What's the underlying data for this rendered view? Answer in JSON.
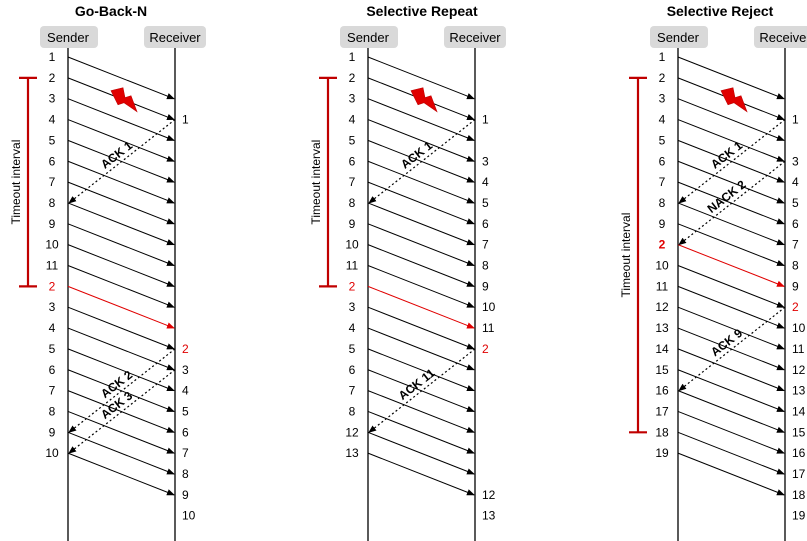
{
  "panels": [
    {
      "title": "Go-Back-N",
      "sender_label": "Sender",
      "receiver_label": "Receiver",
      "timeout_label": "Timeout interval",
      "sender_seq": [
        "1",
        "2",
        "3",
        "4",
        "5",
        "6",
        "7",
        "8",
        "9",
        "10",
        "11",
        "2",
        "3",
        "4",
        "5",
        "6",
        "7",
        "8",
        "9",
        "10"
      ],
      "sender_red": [
        11
      ],
      "receiver_seq": [
        {
          "row": 3,
          "label": "1"
        },
        {
          "row": 14,
          "label": "2",
          "red": true
        },
        {
          "row": 15,
          "label": "3"
        },
        {
          "row": 16,
          "label": "4"
        },
        {
          "row": 17,
          "label": "5"
        },
        {
          "row": 18,
          "label": "6"
        },
        {
          "row": 19,
          "label": "7"
        },
        {
          "row": 20,
          "label": "8"
        },
        {
          "row": 21,
          "label": "9"
        },
        {
          "row": 22,
          "label": "10"
        }
      ],
      "acks": [
        {
          "label": "ACK 1",
          "from_row": 3,
          "to_row": 7
        },
        {
          "label": "ACK 2",
          "from_row": 14,
          "to_row": 18
        },
        {
          "label": "ACK 3",
          "from_row": 15,
          "to_row": 19
        }
      ]
    },
    {
      "title": "Selective Repeat",
      "sender_label": "Sender",
      "receiver_label": "Receiver",
      "timeout_label": "Timeout interval",
      "sender_seq": [
        "1",
        "2",
        "3",
        "4",
        "5",
        "6",
        "7",
        "8",
        "9",
        "10",
        "11",
        "2",
        "3",
        "4",
        "5",
        "6",
        "7",
        "8",
        "12",
        "13"
      ],
      "sender_red": [
        11
      ],
      "receiver_seq": [
        {
          "row": 3,
          "label": "1"
        },
        {
          "row": 5,
          "label": "3"
        },
        {
          "row": 6,
          "label": "4"
        },
        {
          "row": 7,
          "label": "5"
        },
        {
          "row": 8,
          "label": "6"
        },
        {
          "row": 9,
          "label": "7"
        },
        {
          "row": 10,
          "label": "8"
        },
        {
          "row": 11,
          "label": "9"
        },
        {
          "row": 12,
          "label": "10"
        },
        {
          "row": 13,
          "label": "11"
        },
        {
          "row": 14,
          "label": "2",
          "red": true
        },
        {
          "row": 21,
          "label": "12"
        },
        {
          "row": 22,
          "label": "13"
        }
      ],
      "acks": [
        {
          "label": "ACK 1",
          "from_row": 3,
          "to_row": 7
        },
        {
          "label": "ACK 11",
          "from_row": 14,
          "to_row": 18
        }
      ]
    },
    {
      "title": "Selective Reject",
      "sender_label": "Sender",
      "receiver_label": "Receiver",
      "timeout_label": "Timeout interval",
      "sender_seq": [
        "1",
        "2",
        "3",
        "4",
        "5",
        "6",
        "7",
        "8",
        "9",
        "2",
        "10",
        "11",
        "12",
        "13",
        "14",
        "15",
        "16",
        "17",
        "18",
        "19"
      ],
      "sender_red": [
        9
      ],
      "receiver_seq": [
        {
          "row": 3,
          "label": "1"
        },
        {
          "row": 5,
          "label": "3"
        },
        {
          "row": 6,
          "label": "4"
        },
        {
          "row": 7,
          "label": "5"
        },
        {
          "row": 8,
          "label": "6"
        },
        {
          "row": 9,
          "label": "7"
        },
        {
          "row": 10,
          "label": "8"
        },
        {
          "row": 11,
          "label": "9"
        },
        {
          "row": 12,
          "label": "2",
          "red": true
        },
        {
          "row": 13,
          "label": "10"
        },
        {
          "row": 14,
          "label": "11"
        },
        {
          "row": 15,
          "label": "12"
        },
        {
          "row": 16,
          "label": "13"
        },
        {
          "row": 17,
          "label": "14"
        },
        {
          "row": 18,
          "label": "15"
        },
        {
          "row": 19,
          "label": "16"
        },
        {
          "row": 20,
          "label": "17"
        },
        {
          "row": 21,
          "label": "18"
        },
        {
          "row": 22,
          "label": "19"
        }
      ],
      "acks": [
        {
          "label": "ACK 1",
          "from_row": 3,
          "to_row": 7
        },
        {
          "label": "NACK 2",
          "from_row": 5,
          "to_row": 9
        },
        {
          "label": "ACK 9",
          "from_row": 12,
          "to_row": 16
        }
      ]
    }
  ]
}
